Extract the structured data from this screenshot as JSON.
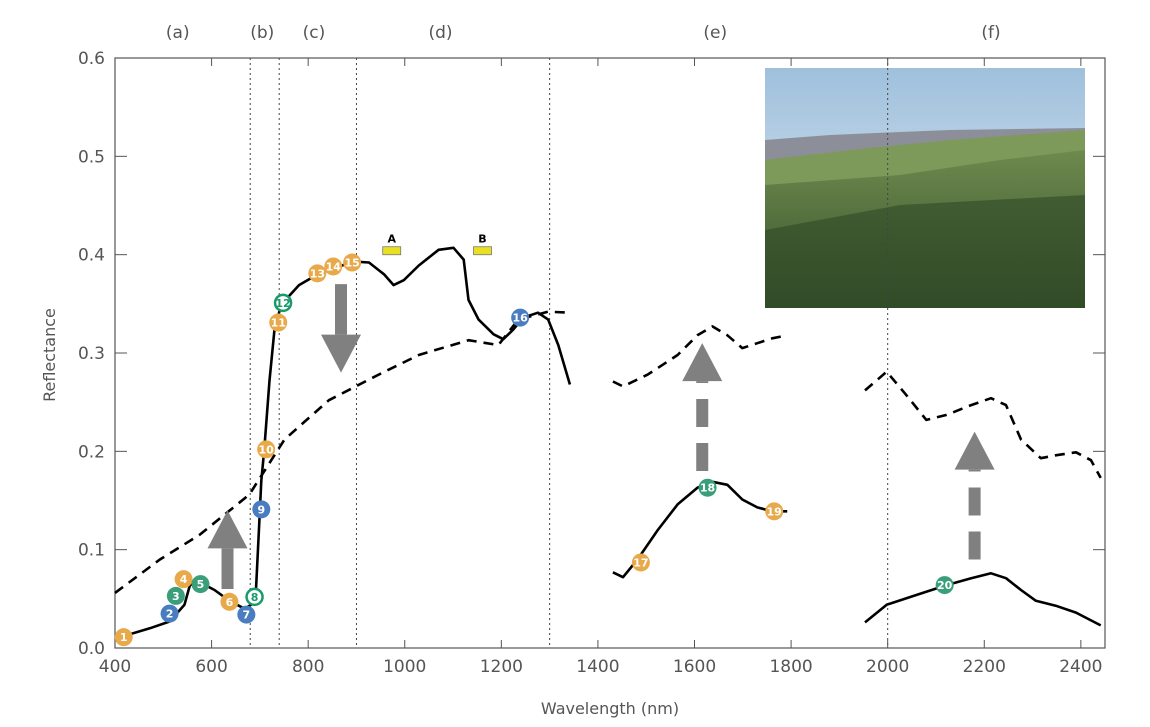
{
  "chart_data": {
    "type": "line",
    "xlabel": "Wavelength (nm)",
    "ylabel": "Reflectance",
    "xlim": [
      400,
      2450
    ],
    "ylim": [
      0,
      0.6
    ],
    "xticks": [
      400,
      600,
      800,
      1000,
      1200,
      1400,
      1600,
      1800,
      2000,
      2200,
      2400
    ],
    "yticks": [
      "0.0",
      "0.1",
      "0.2",
      "0.3",
      "0.4",
      "0.5",
      "0.6"
    ],
    "grid": false,
    "regions": [
      {
        "label": "(a)",
        "x": 530
      },
      {
        "label": "(b)",
        "x": 705
      },
      {
        "label": "(c)",
        "x": 812
      },
      {
        "label": "(d)",
        "x": 1074
      },
      {
        "label": "(e)",
        "x": 1643
      },
      {
        "label": "(f)",
        "x": 2214
      }
    ],
    "dotted_lines_x": [
      680,
      740,
      900,
      1300,
      2000
    ],
    "bands": [
      {
        "label": "A",
        "x": 973,
        "y": 0.404
      },
      {
        "label": "B",
        "x": 1161,
        "y": 0.404
      }
    ],
    "band_color": "#e8e020",
    "series": [
      {
        "style": "solid",
        "segments": [
          [
            [
              410,
              0.011
            ],
            [
              472,
              0.02
            ],
            [
              513,
              0.027
            ],
            [
              544,
              0.044
            ],
            [
              555,
              0.064
            ],
            [
              575,
              0.067
            ],
            [
              606,
              0.059
            ],
            [
              637,
              0.048
            ],
            [
              668,
              0.04
            ],
            [
              682,
              0.044
            ],
            [
              691,
              0.049
            ],
            [
              699,
              0.13
            ],
            [
              703,
              0.17
            ],
            [
              709,
              0.201
            ],
            [
              720,
              0.272
            ],
            [
              730,
              0.323
            ],
            [
              744,
              0.349
            ],
            [
              781,
              0.369
            ],
            [
              823,
              0.381
            ],
            [
              864,
              0.388
            ],
            [
              895,
              0.393
            ],
            [
              926,
              0.392
            ],
            [
              957,
              0.38
            ],
            [
              977,
              0.369
            ],
            [
              998,
              0.374
            ],
            [
              1029,
              0.389
            ],
            [
              1070,
              0.405
            ],
            [
              1101,
              0.407
            ],
            [
              1122,
              0.395
            ],
            [
              1132,
              0.354
            ],
            [
              1153,
              0.334
            ],
            [
              1184,
              0.319
            ],
            [
              1204,
              0.314
            ],
            [
              1225,
              0.324
            ],
            [
              1245,
              0.336
            ],
            [
              1276,
              0.341
            ],
            [
              1297,
              0.334
            ],
            [
              1318,
              0.308
            ],
            [
              1342,
              0.268
            ]
          ],
          [
            [
              1431,
              0.077
            ],
            [
              1452,
              0.072
            ],
            [
              1482,
              0.09
            ],
            [
              1524,
              0.12
            ],
            [
              1565,
              0.146
            ],
            [
              1606,
              0.163
            ],
            [
              1637,
              0.169
            ],
            [
              1668,
              0.166
            ],
            [
              1699,
              0.151
            ],
            [
              1730,
              0.143
            ],
            [
              1761,
              0.139
            ],
            [
              1792,
              0.139
            ]
          ],
          [
            [
              1953,
              0.026
            ],
            [
              1998,
              0.044
            ],
            [
              2060,
              0.054
            ],
            [
              2122,
              0.064
            ],
            [
              2173,
              0.071
            ],
            [
              2214,
              0.076
            ],
            [
              2245,
              0.071
            ],
            [
              2276,
              0.059
            ],
            [
              2307,
              0.048
            ],
            [
              2348,
              0.043
            ],
            [
              2390,
              0.036
            ],
            [
              2441,
              0.023
            ]
          ]
        ]
      },
      {
        "style": "dashed",
        "segments": [
          [
            [
              400,
              0.056
            ],
            [
              493,
              0.09
            ],
            [
              575,
              0.115
            ],
            [
              678,
              0.156
            ],
            [
              751,
              0.212
            ],
            [
              843,
              0.252
            ],
            [
              946,
              0.278
            ],
            [
              1029,
              0.298
            ],
            [
              1132,
              0.313
            ],
            [
              1194,
              0.308
            ],
            [
              1235,
              0.334
            ],
            [
              1297,
              0.342
            ],
            [
              1342,
              0.341
            ]
          ],
          [
            [
              1431,
              0.271
            ],
            [
              1452,
              0.266
            ],
            [
              1503,
              0.278
            ],
            [
              1565,
              0.298
            ],
            [
              1606,
              0.318
            ],
            [
              1637,
              0.327
            ],
            [
              1668,
              0.318
            ],
            [
              1699,
              0.305
            ],
            [
              1730,
              0.31
            ],
            [
              1761,
              0.315
            ],
            [
              1792,
              0.318
            ]
          ],
          [
            [
              1953,
              0.262
            ],
            [
              1998,
              0.281
            ],
            [
              2039,
              0.257
            ],
            [
              2080,
              0.232
            ],
            [
              2122,
              0.237
            ],
            [
              2173,
              0.247
            ],
            [
              2214,
              0.254
            ],
            [
              2245,
              0.247
            ],
            [
              2276,
              0.212
            ],
            [
              2317,
              0.193
            ],
            [
              2348,
              0.196
            ],
            [
              2390,
              0.199
            ],
            [
              2421,
              0.191
            ],
            [
              2441,
              0.173
            ]
          ]
        ]
      }
    ],
    "marker_colors": {
      "orange": "#e8a94a",
      "green": "#3a9e7a",
      "blue": "#4a7dc0",
      "ring": "#1a9a6a"
    },
    "markers": [
      {
        "n": "1",
        "x": 418,
        "y": 0.011,
        "c": "orange"
      },
      {
        "n": "2",
        "x": 513,
        "y": 0.035,
        "c": "blue"
      },
      {
        "n": "3",
        "x": 526,
        "y": 0.053,
        "c": "green"
      },
      {
        "n": "4",
        "x": 542,
        "y": 0.07,
        "c": "orange"
      },
      {
        "n": "5",
        "x": 577,
        "y": 0.065,
        "c": "green"
      },
      {
        "n": "6",
        "x": 637,
        "y": 0.047,
        "c": "orange"
      },
      {
        "n": "7",
        "x": 672,
        "y": 0.034,
        "c": "blue"
      },
      {
        "n": "8",
        "x": 689,
        "y": 0.052,
        "c": "ring"
      },
      {
        "n": "9",
        "x": 703,
        "y": 0.141,
        "c": "blue"
      },
      {
        "n": "10",
        "x": 713,
        "y": 0.202,
        "c": "orange"
      },
      {
        "n": "11",
        "x": 738,
        "y": 0.331,
        "c": "orange"
      },
      {
        "n": "12",
        "x": 748,
        "y": 0.351,
        "c": "ring"
      },
      {
        "n": "13",
        "x": 819,
        "y": 0.381,
        "c": "orange"
      },
      {
        "n": "14",
        "x": 852,
        "y": 0.388,
        "c": "orange"
      },
      {
        "n": "15",
        "x": 891,
        "y": 0.392,
        "c": "orange"
      },
      {
        "n": "16",
        "x": 1239,
        "y": 0.336,
        "c": "blue"
      },
      {
        "n": "17",
        "x": 1489,
        "y": 0.087,
        "c": "orange"
      },
      {
        "n": "18",
        "x": 1627,
        "y": 0.163,
        "c": "green"
      },
      {
        "n": "19",
        "x": 1765,
        "y": 0.139,
        "c": "orange"
      },
      {
        "n": "20",
        "x": 2118,
        "y": 0.064,
        "c": "green"
      }
    ],
    "arrows": [
      {
        "x": 633,
        "from": 0.06,
        "to": 0.14,
        "style": "solid"
      },
      {
        "x": 868,
        "from": 0.37,
        "to": 0.28,
        "style": "solid"
      },
      {
        "x": 1616,
        "from": 0.18,
        "to": 0.31,
        "style": "dashed"
      },
      {
        "x": 2180,
        "from": 0.09,
        "to": 0.22,
        "style": "dashed"
      }
    ],
    "arrow_color": "#808080",
    "inset": "landscape-photo-forest"
  }
}
